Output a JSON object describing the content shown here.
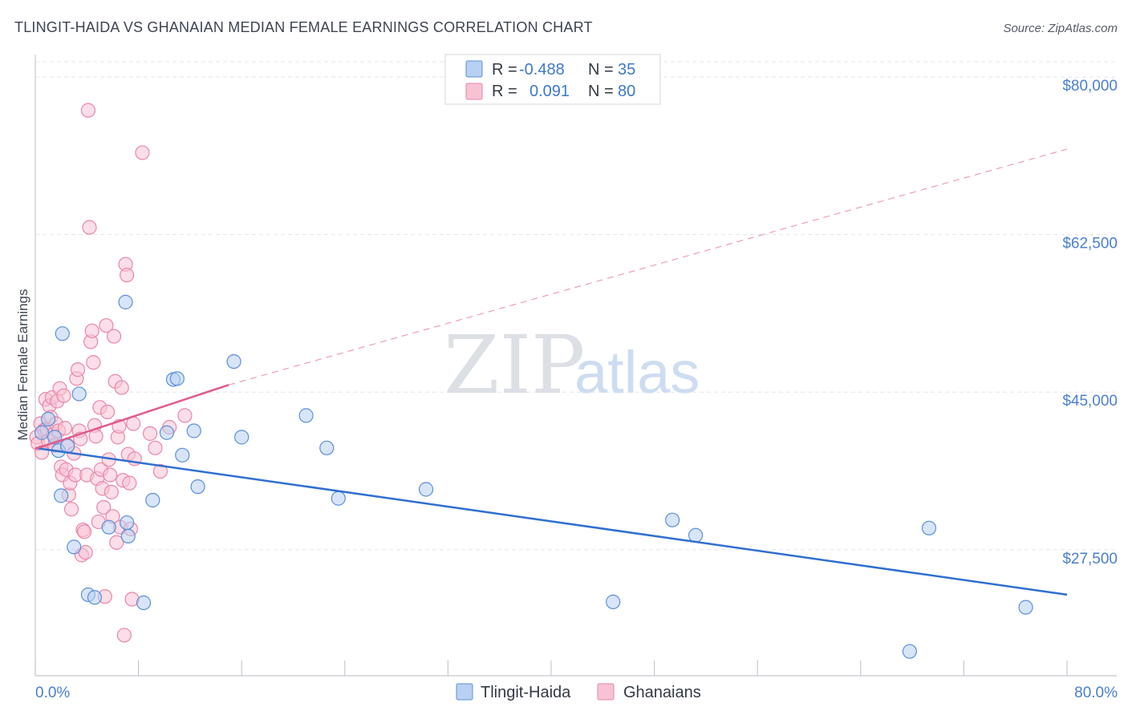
{
  "title": "TLINGIT-HAIDA VS GHANAIAN MEDIAN FEMALE EARNINGS CORRELATION CHART",
  "source": "Source: ZipAtlas.com",
  "watermark": {
    "zip": "ZIP",
    "atlas": "atlas"
  },
  "colors": {
    "blue_fill": "#b8d0f2",
    "blue_stroke": "#5b8fd6",
    "blue_line": "#2f6fd0",
    "pink_fill": "#f7c3d3",
    "pink_stroke": "#e986a8",
    "pink_line": "#e05b8c",
    "grid": "#e2e5ea",
    "axis": "#c4c8ce",
    "tick_text": "#4a7fd0"
  },
  "legend": {
    "rows": [
      {
        "r_label": "R =",
        "r_value": "-0.488",
        "n_label": "N =",
        "n_value": "35"
      },
      {
        "r_label": "R =",
        "r_value": " 0.091",
        "n_label": "N =",
        "n_value": "80"
      }
    ]
  },
  "bottom_legend": [
    "Tlingit-Haida",
    "Ghanaians"
  ],
  "chart_data": {
    "type": "scatter",
    "title": "TLINGIT-HAIDA VS GHANAIAN MEDIAN FEMALE EARNINGS CORRELATION CHART",
    "xlabel": "",
    "ylabel": "Median Female Earnings",
    "xlim": [
      0,
      80
    ],
    "ylim": [
      13500,
      82500
    ],
    "x_tick_labels": [
      "0.0%",
      "80.0%"
    ],
    "y_ticks": [
      27500,
      45000,
      62500,
      80000
    ],
    "y_tick_labels": [
      "$27,500",
      "$45,000",
      "$62,500",
      "$80,000"
    ],
    "series": [
      {
        "name": "Tlingit-Haida",
        "r": -0.488,
        "n": 35,
        "trend": {
          "x": [
            0,
            80
          ],
          "y": [
            38800,
            22500
          ]
        },
        "points": [
          [
            0.5,
            40500
          ],
          [
            1.0,
            42000
          ],
          [
            1.5,
            40000
          ],
          [
            1.8,
            38500
          ],
          [
            2.0,
            33500
          ],
          [
            2.1,
            51500
          ],
          [
            2.5,
            39000
          ],
          [
            3.0,
            27800
          ],
          [
            3.4,
            44800
          ],
          [
            4.1,
            22500
          ],
          [
            4.6,
            22200
          ],
          [
            5.7,
            30000
          ],
          [
            7.0,
            55000
          ],
          [
            7.1,
            30500
          ],
          [
            7.2,
            29000
          ],
          [
            8.4,
            21600
          ],
          [
            9.1,
            33000
          ],
          [
            10.2,
            40500
          ],
          [
            10.7,
            46400
          ],
          [
            11.0,
            46500
          ],
          [
            11.4,
            38000
          ],
          [
            12.3,
            40700
          ],
          [
            12.6,
            34500
          ],
          [
            15.4,
            48400
          ],
          [
            16.0,
            40000
          ],
          [
            21.0,
            42400
          ],
          [
            22.6,
            38800
          ],
          [
            23.5,
            33200
          ],
          [
            30.3,
            34200
          ],
          [
            44.8,
            21700
          ],
          [
            49.4,
            30800
          ],
          [
            51.2,
            29100
          ],
          [
            67.8,
            16200
          ],
          [
            69.3,
            29900
          ],
          [
            76.8,
            21100
          ]
        ]
      },
      {
        "name": "Ghanaians",
        "r": 0.091,
        "n": 80,
        "trend": {
          "x": [
            0,
            15
          ],
          "y": [
            38700,
            45800
          ],
          "extrapolated": {
            "x": [
              15,
              80
            ],
            "y": [
              45800,
              72000
            ]
          }
        },
        "points": [
          [
            0.1,
            40000
          ],
          [
            0.2,
            39300
          ],
          [
            0.4,
            41500
          ],
          [
            0.5,
            38300
          ],
          [
            0.7,
            40800
          ],
          [
            0.8,
            44200
          ],
          [
            0.9,
            40900
          ],
          [
            1.0,
            39600
          ],
          [
            1.1,
            43500
          ],
          [
            1.2,
            42200
          ],
          [
            1.3,
            44400
          ],
          [
            1.4,
            40300
          ],
          [
            1.5,
            39100
          ],
          [
            1.6,
            41500
          ],
          [
            1.7,
            44000
          ],
          [
            1.8,
            40700
          ],
          [
            1.9,
            45400
          ],
          [
            2.0,
            36700
          ],
          [
            2.1,
            35800
          ],
          [
            2.2,
            44600
          ],
          [
            2.3,
            41000
          ],
          [
            2.4,
            36400
          ],
          [
            2.5,
            39100
          ],
          [
            2.6,
            33600
          ],
          [
            2.7,
            34900
          ],
          [
            2.8,
            32000
          ],
          [
            3.0,
            38200
          ],
          [
            3.1,
            35800
          ],
          [
            3.2,
            46500
          ],
          [
            3.3,
            47500
          ],
          [
            3.4,
            40700
          ],
          [
            3.5,
            39800
          ],
          [
            3.6,
            26900
          ],
          [
            3.7,
            29700
          ],
          [
            3.8,
            29500
          ],
          [
            3.9,
            27200
          ],
          [
            4.0,
            35800
          ],
          [
            4.1,
            76300
          ],
          [
            4.2,
            63300
          ],
          [
            4.3,
            50600
          ],
          [
            4.4,
            51800
          ],
          [
            4.5,
            48300
          ],
          [
            4.6,
            41300
          ],
          [
            4.7,
            40100
          ],
          [
            4.8,
            35400
          ],
          [
            4.9,
            30600
          ],
          [
            5.0,
            43300
          ],
          [
            5.1,
            36400
          ],
          [
            5.2,
            34300
          ],
          [
            5.3,
            32200
          ],
          [
            5.4,
            22300
          ],
          [
            5.5,
            52400
          ],
          [
            5.6,
            42800
          ],
          [
            5.7,
            37500
          ],
          [
            5.8,
            35800
          ],
          [
            5.9,
            33900
          ],
          [
            6.0,
            31200
          ],
          [
            6.1,
            51200
          ],
          [
            6.2,
            46200
          ],
          [
            6.3,
            28300
          ],
          [
            6.4,
            40000
          ],
          [
            6.5,
            41200
          ],
          [
            6.6,
            30000
          ],
          [
            6.7,
            45500
          ],
          [
            6.8,
            35200
          ],
          [
            6.9,
            18000
          ],
          [
            7.0,
            59200
          ],
          [
            7.1,
            58000
          ],
          [
            7.2,
            38100
          ],
          [
            7.3,
            34900
          ],
          [
            7.4,
            29800
          ],
          [
            7.5,
            22000
          ],
          [
            7.6,
            41500
          ],
          [
            7.7,
            37600
          ],
          [
            8.3,
            71600
          ],
          [
            8.9,
            40400
          ],
          [
            9.3,
            38800
          ],
          [
            9.7,
            36200
          ],
          [
            10.4,
            41100
          ],
          [
            11.6,
            42400
          ]
        ]
      }
    ]
  }
}
